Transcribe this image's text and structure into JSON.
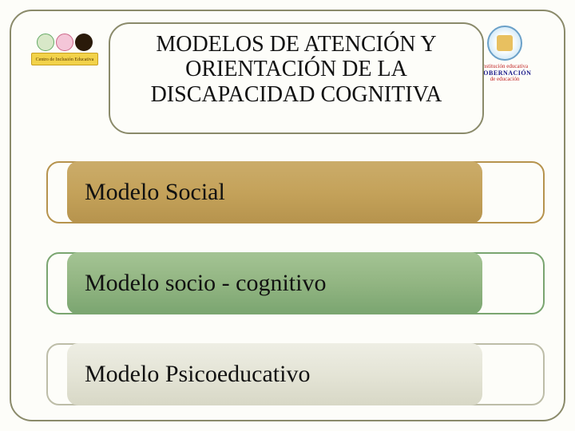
{
  "slide": {
    "background_color": "#fdfdf9",
    "frame_border_color": "#8a8a6a",
    "frame_border_radius": 28
  },
  "title": {
    "text": "MODELOS DE ATENCIÓN Y ORIENTACIÓN DE LA DISCAPACIDAD COGNITIVA",
    "fontsize": 28,
    "color": "#111111",
    "box_border_color": "#8a8a6a"
  },
  "rows": [
    {
      "label": "Modelo Social",
      "fill_gradient": [
        "#cbac6a",
        "#c4a25a",
        "#b6934d"
      ],
      "border_color": "#b6934d",
      "fontsize": 30
    },
    {
      "label": "Modelo socio - cognitivo",
      "fill_gradient": [
        "#a4c494",
        "#92b582",
        "#7aa570"
      ],
      "border_color": "#7aa570",
      "fontsize": 30
    },
    {
      "label": "Modelo Psicoeducativo",
      "fill_gradient": [
        "#eeeee4",
        "#e4e4d6",
        "#d8d8c6"
      ],
      "border_color": "#bdbda8",
      "fontsize": 30
    }
  ],
  "logo_left": {
    "band_text": "Centro de Inclusión Educativa",
    "head_colors": [
      "#d8e8c8",
      "#f4c6d8",
      "#2a1a0a"
    ],
    "band_color": "#f2d24a"
  },
  "logo_right": {
    "line1": "institución educativa",
    "line2": "GOBERNACIÓN",
    "line3": "de educación",
    "seal_border": "#6aa0c8",
    "text_color_1": "#c02020",
    "text_color_2": "#1a1a8a"
  }
}
